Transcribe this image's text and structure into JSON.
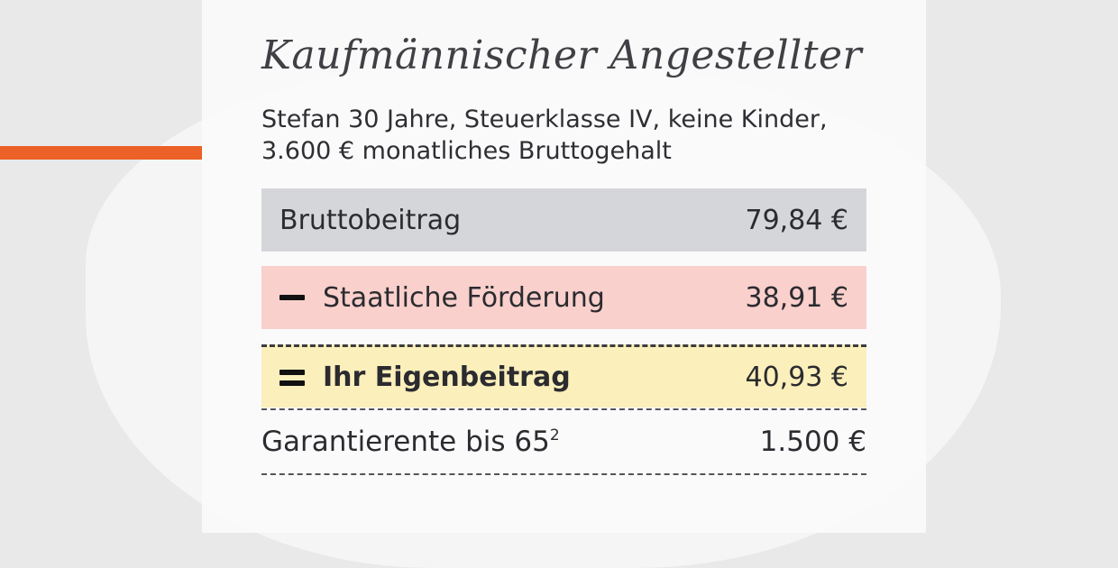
{
  "header": {
    "title": "Kaufmännischer Angestellter",
    "subtitle_line1": "Stefan 30 Jahre, Steuerklasse IV, keine Kinder,",
    "subtitle_line2": "3.600 € monatliches Bruttogehalt"
  },
  "rows": [
    {
      "label": "Bruttobeitrag",
      "value": "79,84 €"
    },
    {
      "label": "Staatliche Förderung",
      "value": "38,91 €"
    },
    {
      "label": "Ihr Eigenbeitrag",
      "value": "40,93 €"
    }
  ],
  "guarantee": {
    "label": "Garantierente bis 65",
    "footnote": "2",
    "value": "1.500 €"
  },
  "colors": {
    "accent": "#ec6127",
    "gross_bg": "#d5d6d9",
    "subsidy_bg": "#f9d0cc",
    "own_bg": "#fbefbb"
  }
}
